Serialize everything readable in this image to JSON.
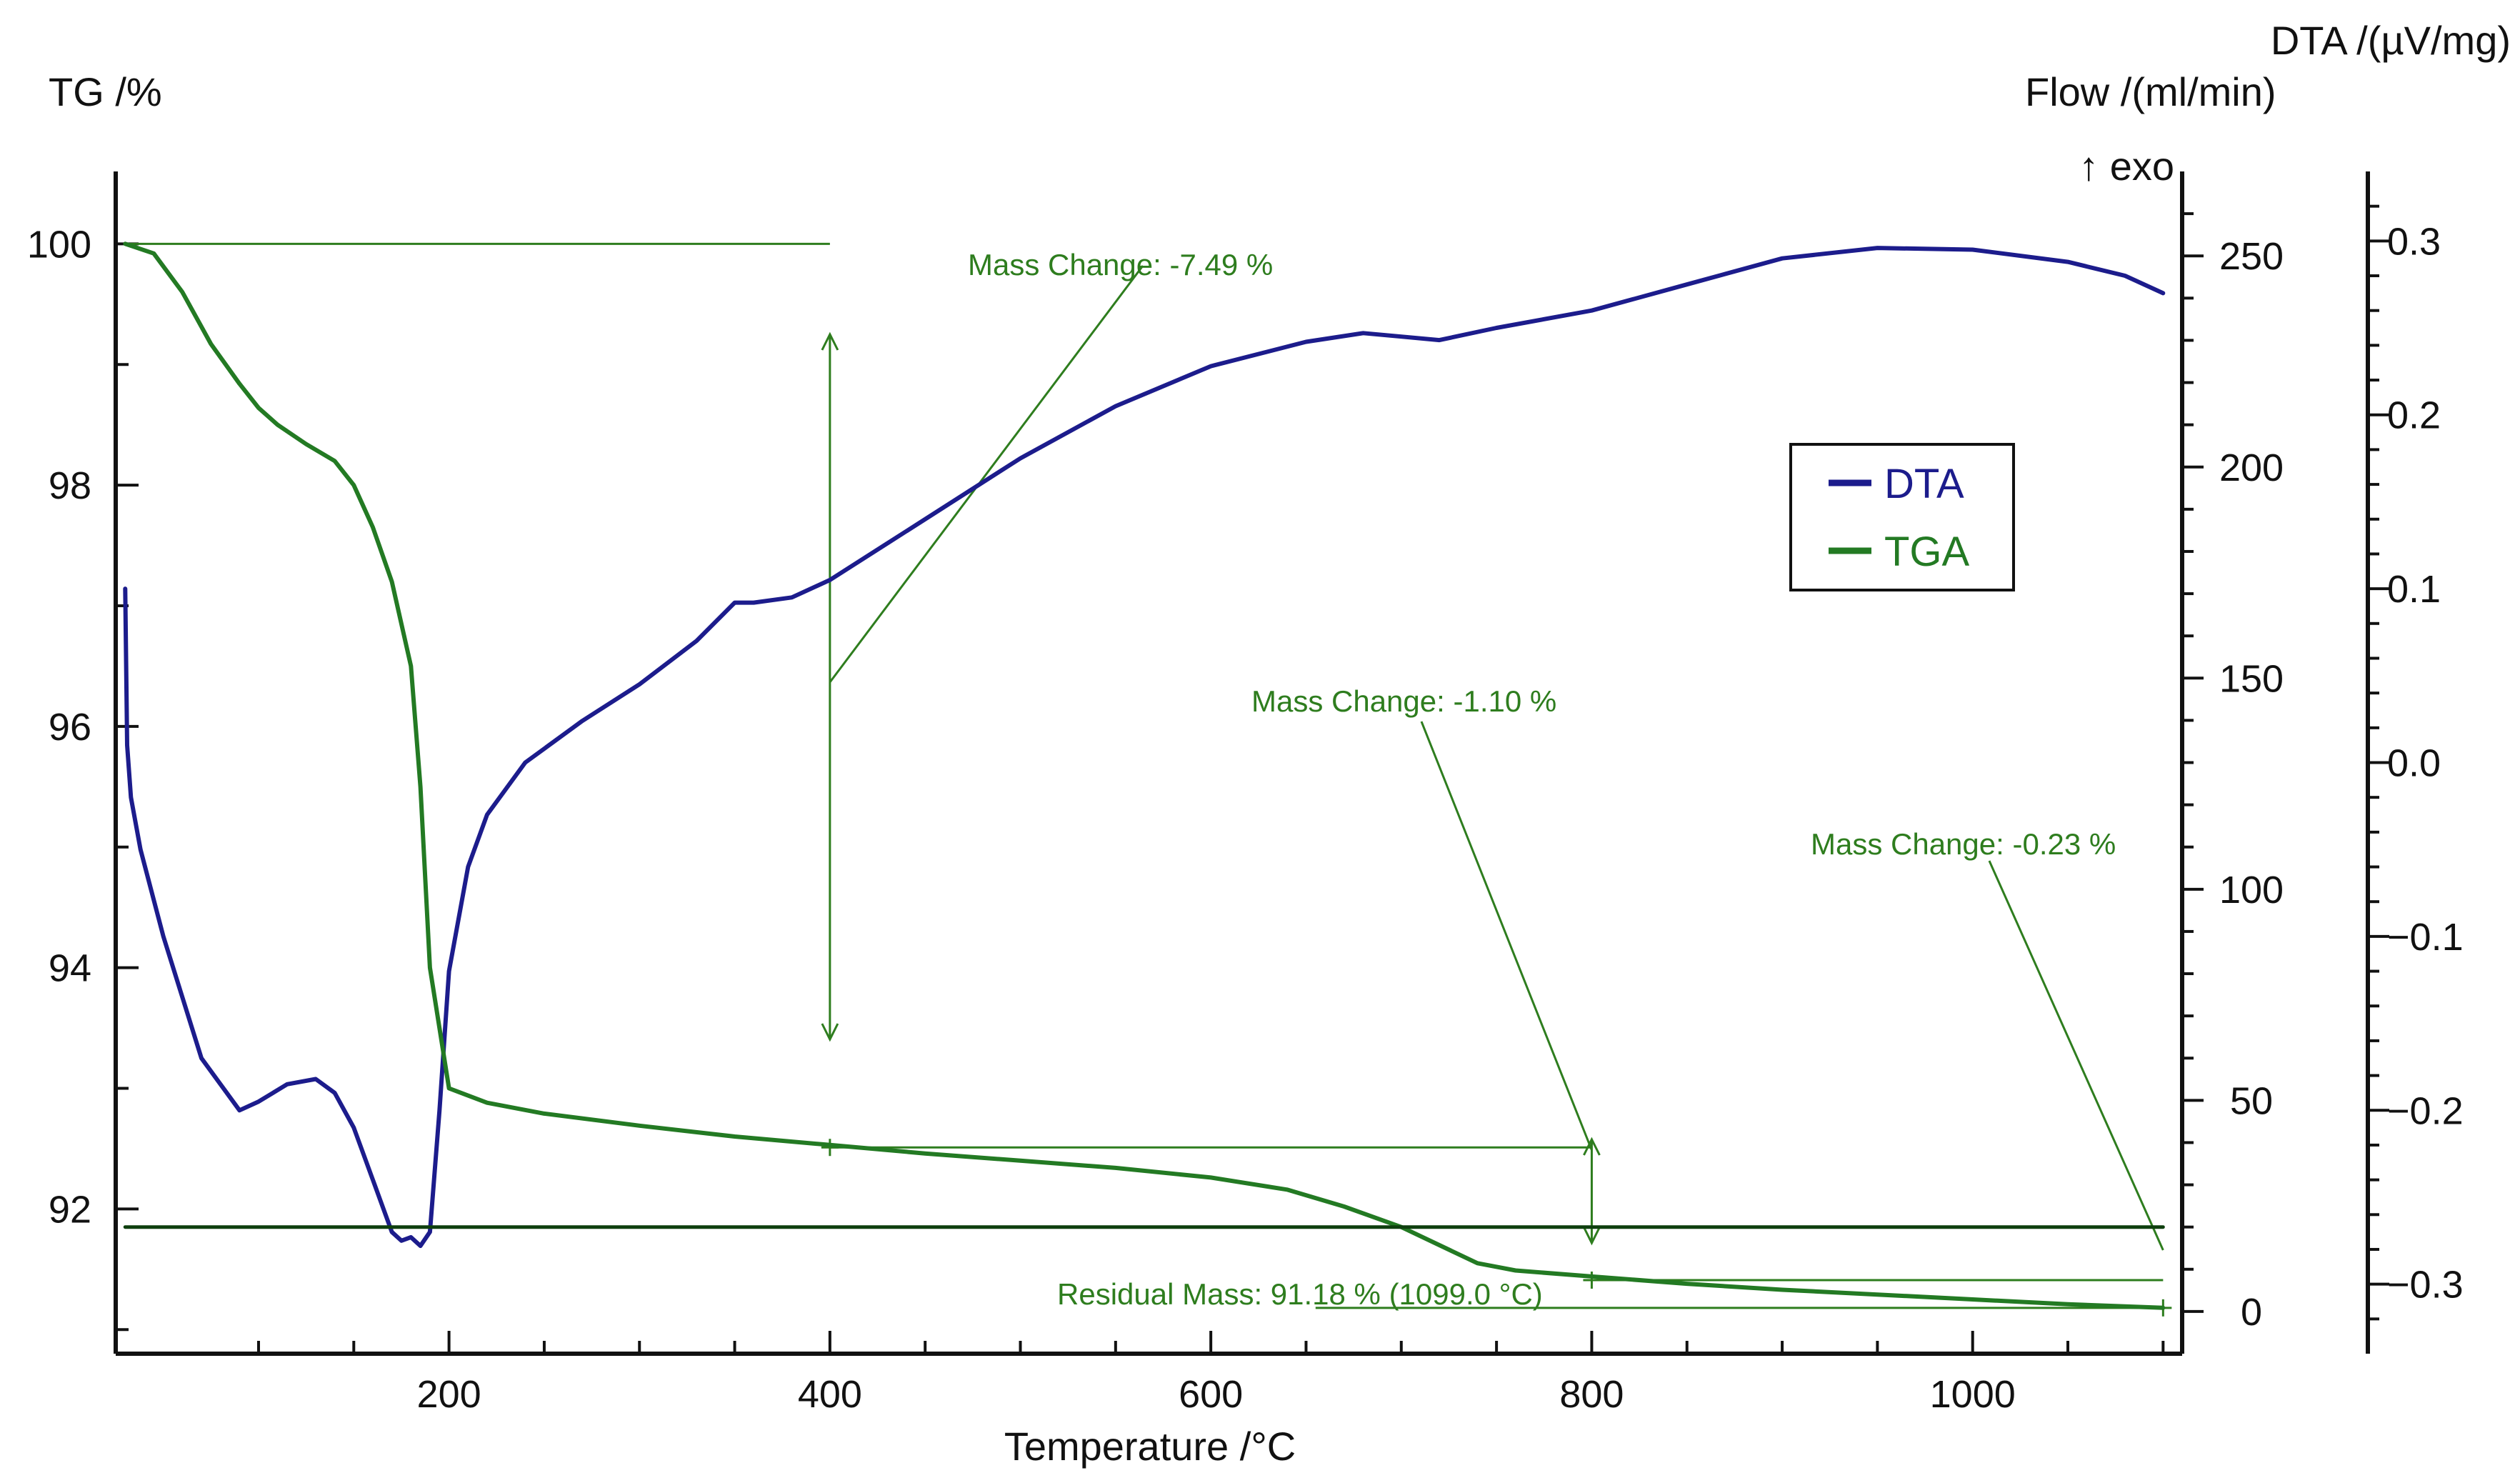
{
  "chart_data": {
    "type": "line",
    "xlabel": "Temperature /°C",
    "xlim": [
      25,
      1110
    ],
    "x_ticks": [
      200,
      400,
      600,
      800,
      1000
    ],
    "left_axis": {
      "label": "TG /%",
      "ylim": [
        90.8,
        100.6
      ],
      "ticks": [
        92,
        94,
        96,
        98,
        100
      ]
    },
    "right_axis_1": {
      "label": "Flow /(ml/min)",
      "extra_label": "↑ exo",
      "ylim": [
        -10,
        270
      ],
      "ticks": [
        0,
        50,
        100,
        150,
        200,
        250
      ]
    },
    "right_axis_2": {
      "label": "DTA /(µV/mg)",
      "ylim": [
        -0.34,
        0.34
      ],
      "ticks": [
        -0.3,
        -0.2,
        -0.1,
        0.0,
        0.1,
        0.2,
        0.3
      ],
      "tick_labels": [
        "−0.3",
        "−0.2",
        "−0.1",
        "0.0",
        "0.1",
        "0.2",
        "0.3"
      ]
    },
    "series": [
      {
        "name": "DTA",
        "axis": "right_axis_2",
        "color": "#1c1c8c",
        "x": [
          30,
          31,
          33,
          38,
          50,
          70,
          90,
          100,
          115,
          130,
          140,
          150,
          160,
          170,
          175,
          180,
          185,
          190,
          195,
          200,
          210,
          220,
          240,
          270,
          300,
          330,
          350,
          360,
          380,
          400,
          450,
          500,
          550,
          600,
          650,
          680,
          700,
          720,
          750,
          800,
          850,
          900,
          950,
          1000,
          1050,
          1080,
          1100
        ],
        "values": [
          0.1,
          0.01,
          -0.02,
          -0.05,
          -0.1,
          -0.17,
          -0.2,
          -0.195,
          -0.185,
          -0.182,
          -0.19,
          -0.21,
          -0.24,
          -0.27,
          -0.275,
          -0.273,
          -0.278,
          -0.27,
          -0.2,
          -0.12,
          -0.06,
          -0.03,
          0.0,
          0.024,
          0.045,
          0.07,
          0.092,
          0.092,
          0.095,
          0.105,
          0.14,
          0.175,
          0.205,
          0.228,
          0.242,
          0.247,
          0.245,
          0.243,
          0.25,
          0.26,
          0.275,
          0.29,
          0.296,
          0.295,
          0.288,
          0.28,
          0.27
        ]
      },
      {
        "name": "TGA",
        "axis": "left_axis",
        "color": "#237a23",
        "x": [
          30,
          45,
          60,
          75,
          90,
          100,
          110,
          125,
          140,
          150,
          160,
          170,
          180,
          185,
          190,
          200,
          220,
          250,
          300,
          350,
          400,
          450,
          500,
          550,
          600,
          640,
          670,
          700,
          720,
          740,
          760,
          800,
          850,
          900,
          950,
          1000,
          1050,
          1100
        ],
        "values": [
          100.0,
          99.92,
          99.6,
          99.17,
          98.84,
          98.64,
          98.5,
          98.34,
          98.2,
          98.0,
          97.65,
          97.2,
          96.5,
          95.5,
          94.0,
          93.0,
          92.88,
          92.79,
          92.69,
          92.6,
          92.53,
          92.46,
          92.4,
          92.34,
          92.26,
          92.16,
          92.02,
          91.85,
          91.7,
          91.55,
          91.49,
          91.44,
          91.38,
          91.33,
          91.29,
          91.25,
          91.21,
          91.18
        ]
      },
      {
        "name": "Flow",
        "axis": "right_axis_1",
        "color": "#0e3f0e",
        "x": [
          30,
          1100
        ],
        "values": [
          20,
          20
        ]
      }
    ],
    "legend": [
      "DTA",
      "TGA"
    ],
    "legend_position": "upper-right",
    "annotations": [
      {
        "text": "Mass Change: -7.49 %"
      },
      {
        "text": "Mass Change: -1.10 %"
      },
      {
        "text": "Mass Change: -0.23 %"
      },
      {
        "text": "Residual Mass: 91.18 % (1099.0 °C)"
      }
    ],
    "mass_steps": [
      {
        "from_x": 30,
        "to_x": 400,
        "from_y": 100.0,
        "to_y": 92.51,
        "change": -7.49
      },
      {
        "from_x": 400,
        "to_x": 800,
        "from_y": 92.51,
        "to_y": 91.41,
        "change": -1.1
      },
      {
        "from_x": 800,
        "to_x": 1100,
        "from_y": 91.41,
        "to_y": 91.18,
        "change": -0.23
      }
    ],
    "residual": {
      "x": 1099.0,
      "y": 91.18
    }
  }
}
